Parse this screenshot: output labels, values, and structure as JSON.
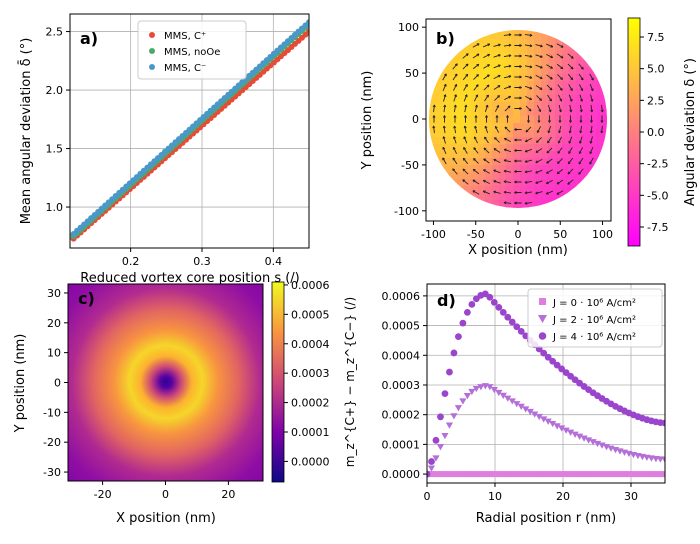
{
  "chart_data": [
    {
      "panel": "a)",
      "type": "scatter",
      "xlabel": "Reduced vortex core position s (/)",
      "ylabel": "Mean angular deviation δ̄ (°)",
      "xlim": [
        0.115,
        0.45
      ],
      "ylim": [
        0.65,
        2.65
      ],
      "xticks": [
        0.2,
        0.3,
        0.4
      ],
      "yticks": [
        1.0,
        1.5,
        2.0,
        2.5
      ],
      "grid": true,
      "legend_position": "top-center",
      "series": [
        {
          "name": "MMS, C⁺",
          "color": "#e84a38",
          "x0": 0.12,
          "x1": 0.45,
          "y0": 0.73,
          "y1": 2.5,
          "n": 68
        },
        {
          "name": "MMS, noOe",
          "color": "#4aaa6c",
          "x0": 0.12,
          "x1": 0.45,
          "y0": 0.75,
          "y1": 2.56,
          "n": 68
        },
        {
          "name": "MMS, C⁻",
          "color": "#4a98c8",
          "x0": 0.12,
          "x1": 0.45,
          "y0": 0.77,
          "y1": 2.58,
          "n": 68
        }
      ]
    },
    {
      "panel": "b)",
      "type": "heatmap",
      "xlabel": "X position (nm)",
      "ylabel": "Y position (nm)",
      "xlim": [
        -110,
        110
      ],
      "ylim": [
        -110,
        110
      ],
      "xticks": [
        -100,
        -50,
        0,
        50,
        100
      ],
      "yticks": [
        -100,
        -50,
        0,
        50,
        100
      ],
      "disk_radius": 100,
      "colorbar_label": "Angular deviation δ (°)",
      "colorbar_range": [
        -9,
        9
      ],
      "colorbar_ticks": [
        -7.5,
        -5.0,
        -2.5,
        0.0,
        2.5,
        5.0,
        7.5
      ],
      "colormap": "spring"
    },
    {
      "panel": "c)",
      "type": "heatmap",
      "xlabel": "X position (nm)",
      "ylabel": "Y position (nm)",
      "xlim": [
        -31,
        31
      ],
      "ylim": [
        -33,
        33
      ],
      "xticks": [
        -20,
        0,
        20
      ],
      "yticks": [
        -30,
        -20,
        -10,
        0,
        10,
        20,
        30
      ],
      "colorbar_label": "m_z^{C+} − m_z^{C−} (/)",
      "colorbar_range": [
        -7e-05,
        0.00061
      ],
      "colorbar_ticks": [
        "0.0000",
        "0.0001",
        "0.0002",
        "0.0003",
        "0.0004",
        "0.0005",
        "0.0006"
      ],
      "colormap": "plasma",
      "peak_radius_nm": 9
    },
    {
      "panel": "d)",
      "type": "scatter",
      "xlabel": "Radial position r (nm)",
      "ylabel": "",
      "xlim": [
        0,
        35
      ],
      "ylim": [
        -3e-05,
        0.00064
      ],
      "xticks": [
        0,
        10,
        20,
        30
      ],
      "yticks": [
        "0.0000",
        "0.0001",
        "0.0002",
        "0.0003",
        "0.0004",
        "0.0005",
        "0.0006"
      ],
      "grid": true,
      "legend_position": "top-right",
      "series": [
        {
          "name": "J = 0 · 10⁶ A/cm²",
          "marker": "square",
          "color": "#e07ee0",
          "peak": 0.0,
          "peak_r": 9,
          "tail": 0.0
        },
        {
          "name": "J = 2 · 10⁶ A/cm²",
          "marker": "triangle-down",
          "color": "#b46fd8",
          "peak": 0.000298,
          "peak_r": 9,
          "tail": 5e-05
        },
        {
          "name": "J = 4 · 10⁶ A/cm²",
          "marker": "circle",
          "color": "#9a45cc",
          "peak": 0.000607,
          "peak_r": 8.8,
          "tail": 0.000172
        }
      ]
    }
  ]
}
